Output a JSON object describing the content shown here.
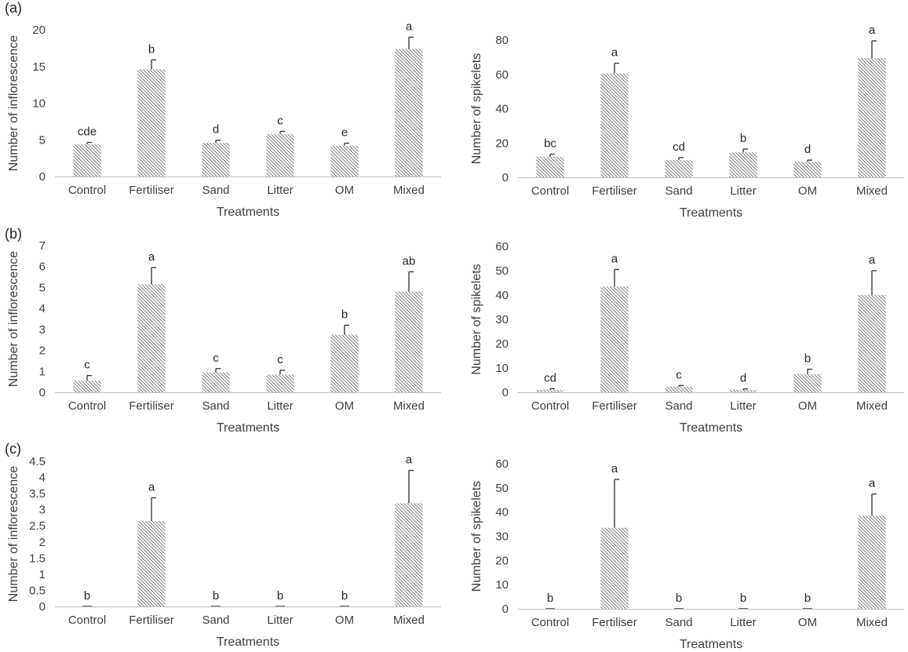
{
  "panel_labels": [
    "(a)",
    "(b)",
    "(c)"
  ],
  "colors": {
    "bar_hatch": "#3a3a3a",
    "axis": "#bfbfbf",
    "text": "#3f3f3f",
    "error_bar": "#3a3a3a"
  },
  "chart_data": [
    {
      "type": "bar",
      "panel": "(a)",
      "categories": [
        "Control",
        "Fertiliser",
        "Sand",
        "Litter",
        "OM",
        "Mixed"
      ],
      "values": [
        4.4,
        14.6,
        4.6,
        5.8,
        4.2,
        17.4
      ],
      "errors": [
        0.25,
        1.3,
        0.35,
        0.35,
        0.35,
        1.6
      ],
      "letters": [
        "cde",
        "b",
        "d",
        "c",
        "e",
        "a"
      ],
      "xlabel": "Treatments",
      "ylabel": "Number of inflorescence",
      "ylim": [
        0,
        20
      ],
      "ticks": [
        "0",
        "5",
        "10",
        "15",
        "20"
      ],
      "grid": false
    },
    {
      "type": "bar",
      "panel": "(a)",
      "categories": [
        "Control",
        "Fertiliser",
        "Sand",
        "Litter",
        "OM",
        "Mixed"
      ],
      "values": [
        12,
        60.5,
        10,
        14.5,
        9,
        69.5
      ],
      "errors": [
        1.5,
        6,
        1.5,
        2,
        1,
        10
      ],
      "letters": [
        "bc",
        "a",
        "cd",
        "b",
        "d",
        "a"
      ],
      "xlabel": "Treatments",
      "ylabel": "Number of spikelets",
      "ylim": [
        0,
        80
      ],
      "ticks": [
        "0",
        "20",
        "40",
        "60",
        "80"
      ],
      "grid": false
    },
    {
      "type": "bar",
      "panel": "(b)",
      "categories": [
        "Control",
        "Fertiliser",
        "Sand",
        "Litter",
        "OM",
        "Mixed"
      ],
      "values": [
        0.55,
        5.15,
        0.95,
        0.85,
        2.75,
        4.8
      ],
      "errors": [
        0.25,
        0.8,
        0.18,
        0.2,
        0.45,
        0.95
      ],
      "letters": [
        "c",
        "a",
        "c",
        "c",
        "b",
        "ab"
      ],
      "xlabel": "Treatments",
      "ylabel": "Number of inflorescence",
      "ylim": [
        0,
        7
      ],
      "ticks": [
        "0",
        "1",
        "2",
        "3",
        "4",
        "5",
        "6",
        "7"
      ],
      "grid": false
    },
    {
      "type": "bar",
      "panel": "(b)",
      "categories": [
        "Control",
        "Fertiliser",
        "Sand",
        "Litter",
        "OM",
        "Mixed"
      ],
      "values": [
        1,
        43.5,
        2.3,
        1,
        7.5,
        40
      ],
      "errors": [
        0.5,
        7,
        0.5,
        0.4,
        2,
        10
      ],
      "letters": [
        "cd",
        "a",
        "c",
        "d",
        "b",
        "a"
      ],
      "xlabel": "Treatments",
      "ylabel": "Number of spikelets",
      "ylim": [
        0,
        60
      ],
      "ticks": [
        "0",
        "10",
        "20",
        "30",
        "40",
        "50",
        "60"
      ],
      "grid": false
    },
    {
      "type": "bar",
      "panel": "(c)",
      "categories": [
        "Control",
        "Fertiliser",
        "Sand",
        "Litter",
        "OM",
        "Mixed"
      ],
      "values": [
        0,
        2.65,
        0,
        0,
        0,
        3.2
      ],
      "errors": [
        0,
        0.72,
        0,
        0,
        0,
        1.02
      ],
      "letters": [
        "b",
        "a",
        "b",
        "b",
        "b",
        "a"
      ],
      "xlabel": "Treatments",
      "ylabel": "Number of inflorescence",
      "ylim": [
        0,
        4.5
      ],
      "ticks": [
        "0",
        "0.5",
        "1",
        "1.5",
        "2",
        "2.5",
        "3",
        "3.5",
        "4",
        "4.5"
      ],
      "grid": false
    },
    {
      "type": "bar",
      "panel": "(c)",
      "categories": [
        "Control",
        "Fertiliser",
        "Sand",
        "Litter",
        "OM",
        "Mixed"
      ],
      "values": [
        0,
        33.5,
        0,
        0,
        0,
        38.5
      ],
      "errors": [
        0,
        20,
        0,
        0,
        0,
        9
      ],
      "letters": [
        "b",
        "a",
        "b",
        "b",
        "b",
        "a"
      ],
      "xlabel": "Treatments",
      "ylabel": "Number of spikelets",
      "ylim": [
        0,
        60
      ],
      "ticks": [
        "0",
        "10",
        "20",
        "30",
        "40",
        "50",
        "60"
      ],
      "grid": false
    }
  ]
}
